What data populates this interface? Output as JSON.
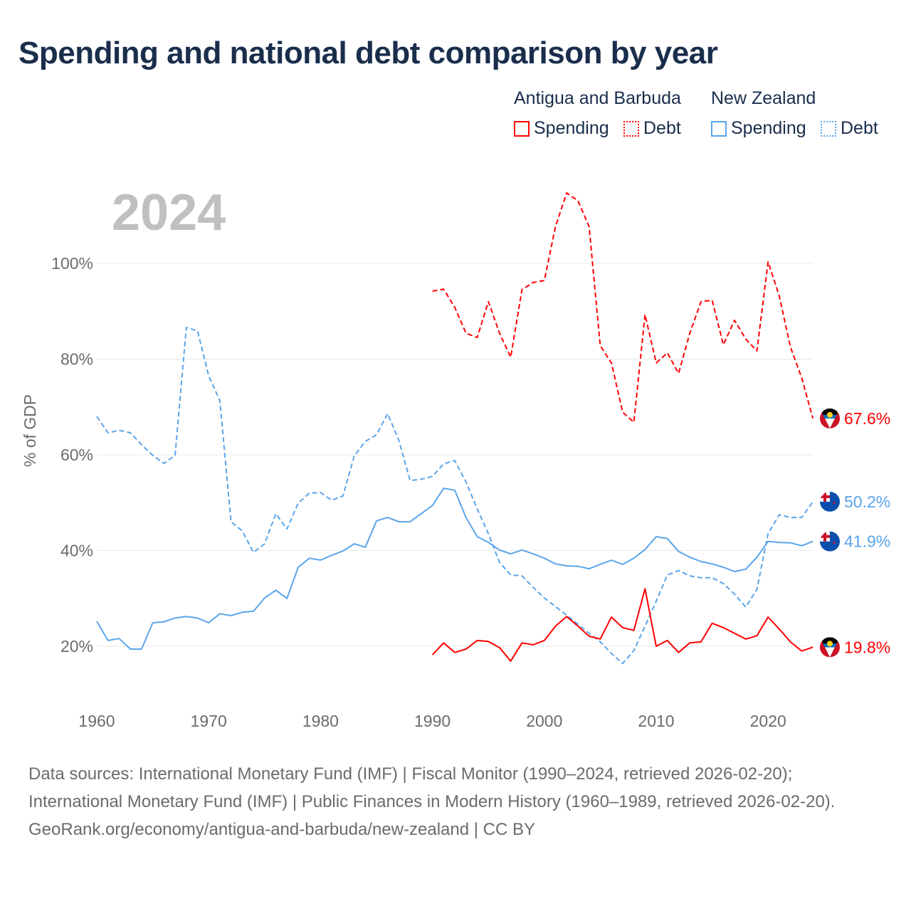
{
  "title": "Spending and national debt comparison by year",
  "legend": {
    "groups": [
      {
        "name": "Antigua and Barbuda",
        "color": "#ff0000",
        "items": [
          "Spending",
          "Debt"
        ]
      },
      {
        "name": "New Zealand",
        "color": "#5aa5ea",
        "items": [
          "Spending",
          "Debt"
        ]
      }
    ]
  },
  "year_watermark": "2024",
  "footer": {
    "sources": "Data sources: International Monetary Fund (IMF) | Fiscal Monitor (1990–2024, retrieved 2026-02-20); International Monetary Fund (IMF) | Public Finances in Modern History (1960–1989, retrieved 2026-02-20).",
    "credit": "GeoRank.org/economy/antigua-and-barbuda/new-zealand | CC BY"
  },
  "chart_data": {
    "type": "line",
    "title": "Spending and national debt comparison by year",
    "xlabel": "",
    "ylabel": "% of GDP",
    "xlim": [
      1960,
      2024
    ],
    "ylim": [
      10,
      115
    ],
    "x_ticks": [
      "1960",
      "1970",
      "1980",
      "1990",
      "2000",
      "2010",
      "2020"
    ],
    "y_ticks": [
      "20%",
      "40%",
      "60%",
      "80%",
      "100%"
    ],
    "y_tick_values": [
      20,
      40,
      60,
      80,
      100
    ],
    "grid": true,
    "legend_position": "top-right",
    "series": [
      {
        "name": "New Zealand Debt",
        "color": "#5aa5ea",
        "dashed": true,
        "start": 1960,
        "end_label": "50.2%",
        "values": [
          68.0,
          64.6,
          65.1,
          64.6,
          62.1,
          59.9,
          58.2,
          59.9,
          86.6,
          85.9,
          76.5,
          71.3,
          46.0,
          44.1,
          39.6,
          41.4,
          47.7,
          44.5,
          49.9,
          52.0,
          52.1,
          50.5,
          51.4,
          59.7,
          62.8,
          64.2,
          68.6,
          63.0,
          54.6,
          54.9,
          55.5,
          58.1,
          58.8,
          54.3,
          48.7,
          43.5,
          37.5,
          34.9,
          34.7,
          32.3,
          30.1,
          28.3,
          26.5,
          24.6,
          22.7,
          20.9,
          18.5,
          16.4,
          19.1,
          24.2,
          29.4,
          34.9,
          35.8,
          34.7,
          34.3,
          34.3,
          33.1,
          30.9,
          28.2,
          31.9,
          43.5,
          47.5,
          46.9,
          46.9,
          50.2
        ]
      },
      {
        "name": "New Zealand Spending",
        "color": "#5aa5ea",
        "dashed": false,
        "start": 1960,
        "end_label": "41.9%",
        "values": [
          25.2,
          21.2,
          21.6,
          19.4,
          19.4,
          24.9,
          25.1,
          25.9,
          26.2,
          25.9,
          24.9,
          26.8,
          26.4,
          27.1,
          27.3,
          30.1,
          31.7,
          30.0,
          36.5,
          38.4,
          38.0,
          39.0,
          39.9,
          41.4,
          40.7,
          46.2,
          46.9,
          46.0,
          46.0,
          47.7,
          49.4,
          53.0,
          52.6,
          46.9,
          42.9,
          41.7,
          40.1,
          39.3,
          40.1,
          39.3,
          38.4,
          37.2,
          36.8,
          36.7,
          36.2,
          37.1,
          38.0,
          37.1,
          38.4,
          40.2,
          42.9,
          42.5,
          39.8,
          38.6,
          37.7,
          37.2,
          36.5,
          35.6,
          36.1,
          38.6,
          41.9,
          41.7,
          41.6,
          41.0,
          41.9
        ]
      },
      {
        "name": "Antigua and Barbuda Debt",
        "color": "#ff0000",
        "dashed": true,
        "start": 1990,
        "end_label": "67.6%",
        "values": [
          94.2,
          94.6,
          90.8,
          85.4,
          84.5,
          92.0,
          85.4,
          80.4,
          94.5,
          96.0,
          96.4,
          107.7,
          114.7,
          113.1,
          107.7,
          82.8,
          79.2,
          68.9,
          66.8,
          89.3,
          79.2,
          81.3,
          77.0,
          85.4,
          92.0,
          92.3,
          83.0,
          88.1,
          84.2,
          81.7,
          100.3,
          93.2,
          82.5,
          76.1,
          67.6
        ]
      },
      {
        "name": "Antigua and Barbuda Spending",
        "color": "#ff0000",
        "dashed": false,
        "start": 1990,
        "end_label": "19.8%",
        "values": [
          18.2,
          20.7,
          18.7,
          19.4,
          21.2,
          21.0,
          19.7,
          16.9,
          20.7,
          20.3,
          21.2,
          24.2,
          26.2,
          24.2,
          22.1,
          21.5,
          26.1,
          23.9,
          23.3,
          32.0,
          20.0,
          21.2,
          18.7,
          20.7,
          20.9,
          24.8,
          23.9,
          22.7,
          21.5,
          22.2,
          26.1,
          23.6,
          20.9,
          19.0,
          19.8
        ]
      }
    ]
  }
}
